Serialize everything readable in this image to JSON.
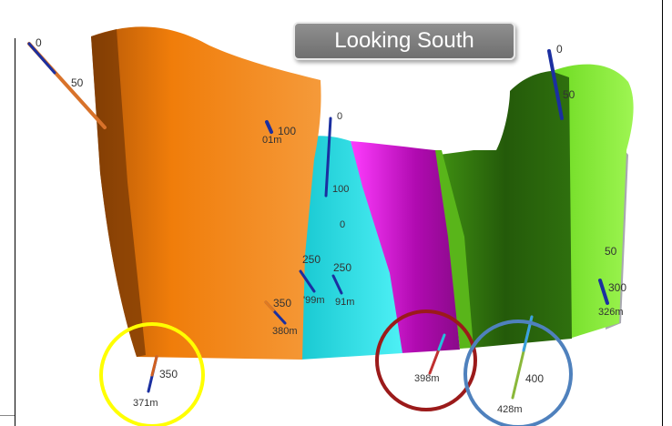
{
  "view_title": "Looking South",
  "labels": {
    "hole1_top": "0",
    "hole1_50": "50",
    "hole2_100": "100",
    "hole2_end": "01m",
    "hole3_top": "0",
    "hole3_100": "100",
    "hole3_mid": "0",
    "hole4_250": "250",
    "hole4_end": "'99m",
    "hole5_250": "250",
    "hole5_end": "91m",
    "hole6_350": "350",
    "hole6_end": "380m",
    "hole7_350": "350",
    "hole7_end": "371m",
    "hole8_end": "398m",
    "hole9_400": "400",
    "hole9_end": "428m",
    "hole10_top": "0",
    "hole10_50": "50",
    "hole11_250": "50",
    "hole11_300": "300",
    "hole11_end": "326m"
  },
  "colors": {
    "orange": "#f07d0a",
    "cyan": "#22e6ee",
    "magenta": "#e60fe6",
    "dark_green": "#2e6e0e",
    "light_green": "#7dee22",
    "drillhole": "#1b2fa0",
    "circle_yellow": "#ffff00",
    "circle_red": "#9b1a1a",
    "circle_blue": "#4f81bd"
  }
}
